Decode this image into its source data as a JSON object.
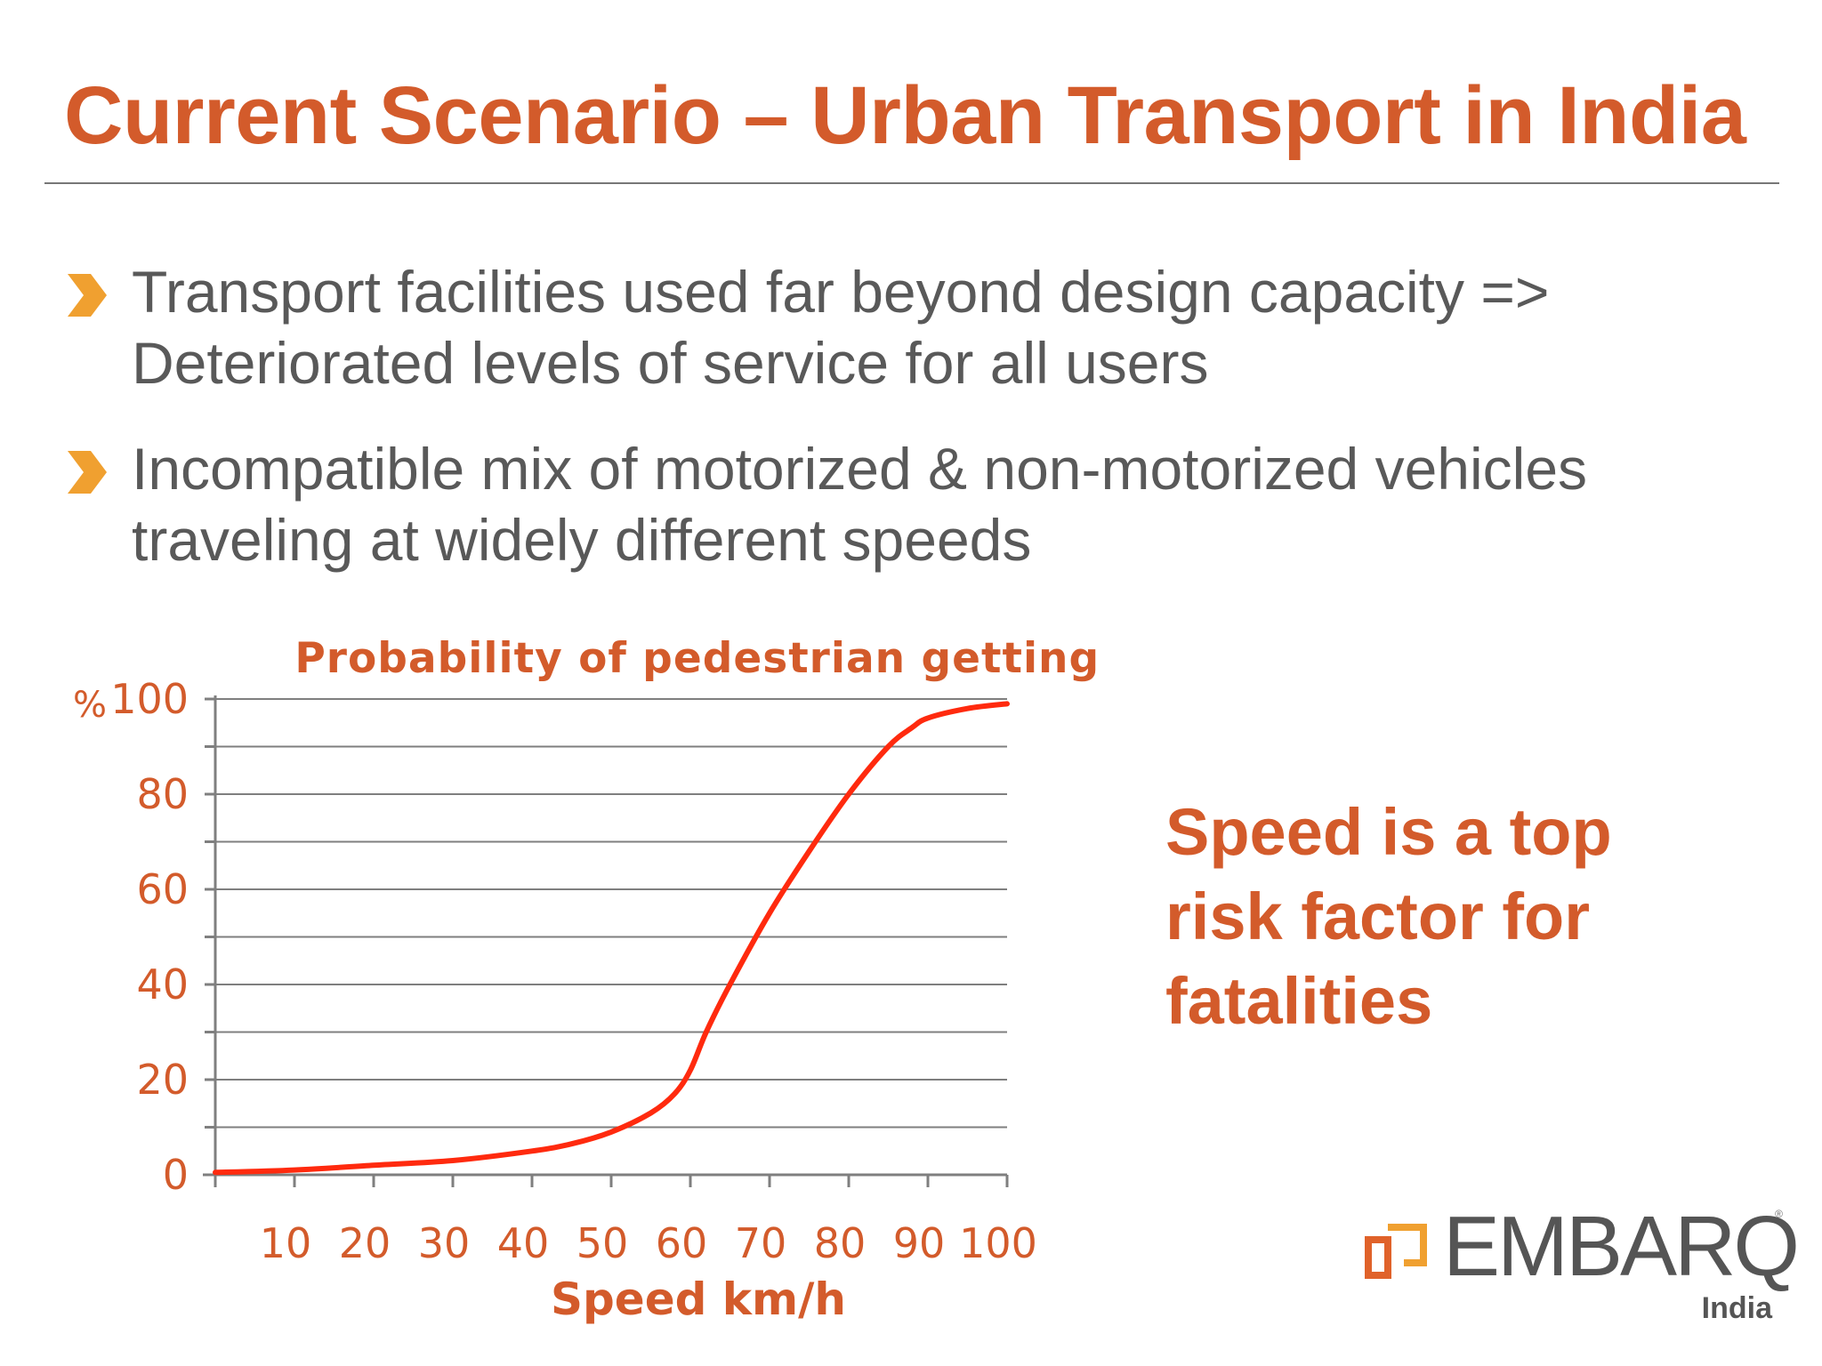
{
  "slide": {
    "title": "Current Scenario – Urban Transport in India",
    "bullets": [
      "Transport facilities used far beyond design capacity => Deteriorated levels of service for all users",
      "Incompatible mix of motorized & non-motorized vehicles traveling at widely different speeds"
    ],
    "callout": "Speed is a top risk factor for fatalities",
    "logo": {
      "name": "EMBARQ",
      "sub": "India",
      "registered": "®"
    },
    "icons": {
      "bullet": "chevron-right-icon",
      "logo": "embarq-logo-icon"
    },
    "colors": {
      "accent": "#d35b2b",
      "bullet": "#f0a030",
      "text": "#595959",
      "curve": "#ff2a0e",
      "grid": "#7f7f7f"
    }
  },
  "chart_data": {
    "type": "line",
    "title": "Probability of pedestrian getting killed",
    "xlabel": "Speed km/h",
    "ylabel": "%",
    "xlim": [
      0,
      100
    ],
    "ylim": [
      0,
      100
    ],
    "x_ticks": [
      10,
      20,
      30,
      40,
      50,
      60,
      70,
      80,
      90,
      100
    ],
    "y_ticks": [
      0,
      20,
      40,
      60,
      80,
      100
    ],
    "grid": true,
    "series": [
      {
        "name": "Probability of pedestrian getting killed",
        "x": [
          0,
          10,
          20,
          30,
          40,
          45,
          50,
          55,
          58,
          60,
          62,
          65,
          70,
          75,
          80,
          85,
          88,
          90,
          95,
          100
        ],
        "y": [
          0.5,
          1,
          2,
          3,
          5,
          6.5,
          9,
          13,
          17,
          22,
          30,
          40,
          55,
          68,
          80,
          90,
          94,
          96,
          98,
          99
        ]
      }
    ]
  }
}
